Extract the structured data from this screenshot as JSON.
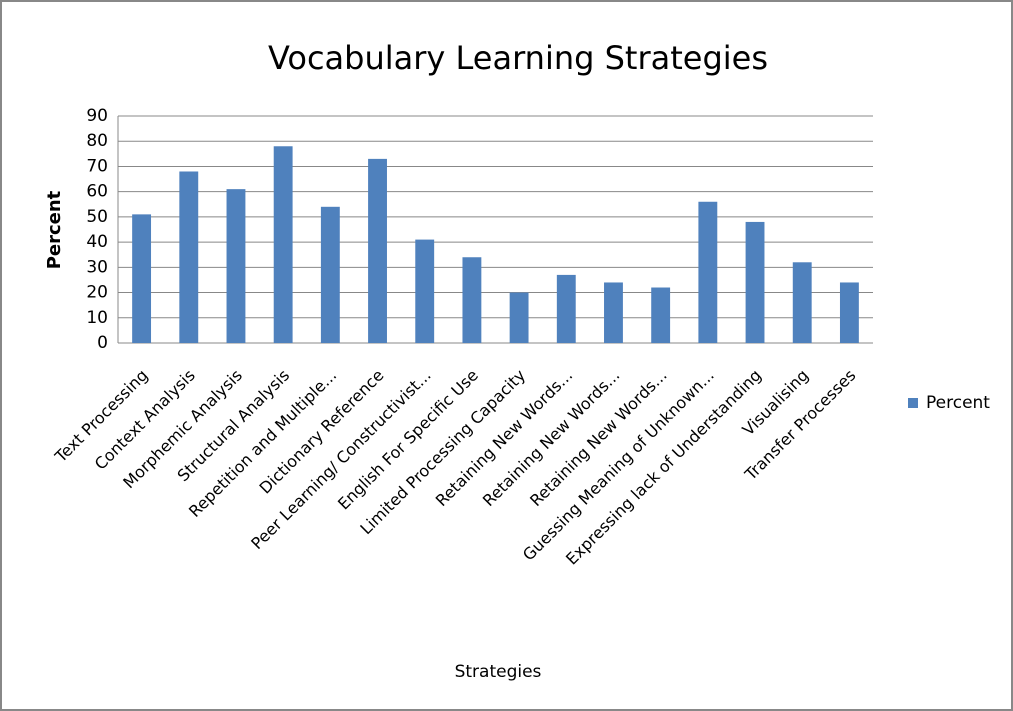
{
  "chart_data": {
    "type": "bar",
    "title": "Vocabulary Learning Strategies",
    "x_label": "Strategies",
    "y_label": "Percent",
    "categories": [
      "Text Processing",
      "Context Analysis",
      "Morphemic Analysis",
      "Structural Analysis",
      "Repetition and Multiple...",
      "Dictionary Reference",
      "Peer Learning/ Constructivist...",
      "English For Specific Use",
      "Limited Processing Capacity",
      "Retaining New Words...",
      "Retaining New Words...",
      "Retaining New Words...",
      "Guessing Meaning of Unknown...",
      "Expressing lack of Understanding",
      "Visualising",
      "Transfer Processes"
    ],
    "series": [
      {
        "name": "Percent",
        "color": "#4f81bd",
        "values": [
          51,
          68,
          61,
          78,
          54,
          73,
          41,
          34,
          20,
          27,
          24,
          22,
          56,
          48,
          32,
          24
        ]
      }
    ],
    "ylim": [
      0,
      90
    ],
    "yticks": [
      0,
      10,
      20,
      30,
      40,
      50,
      60,
      70,
      80,
      90
    ],
    "grid": true,
    "legend": "right"
  }
}
